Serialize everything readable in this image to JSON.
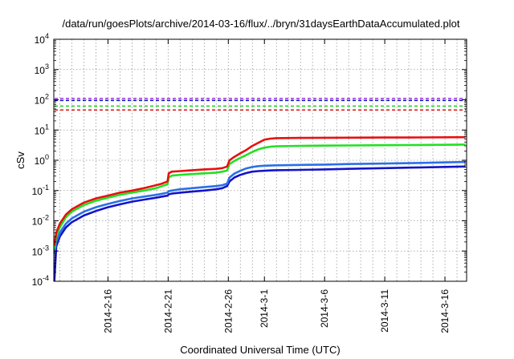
{
  "chart_data": {
    "type": "line",
    "title": "/data/run/goesPlots/archive/2014-03-16/flux/../bryn/31daysEarthDataAccumulated.plot",
    "xlabel": "Coordinated Universal Time (UTC)",
    "ylabel": "cSv",
    "y_scale": "log",
    "ylim": [
      0.0001,
      10000
    ],
    "y_ticks": [
      {
        "value": 0.0001,
        "base": "10",
        "exp": "-4"
      },
      {
        "value": 0.001,
        "base": "10",
        "exp": "-3"
      },
      {
        "value": 0.01,
        "base": "10",
        "exp": "-2"
      },
      {
        "value": 0.1,
        "base": "10",
        "exp": "-1"
      },
      {
        "value": 1,
        "base": "10",
        "exp": "0"
      },
      {
        "value": 10,
        "base": "10",
        "exp": "1"
      },
      {
        "value": 100,
        "base": "10",
        "exp": "2"
      },
      {
        "value": 1000,
        "base": "10",
        "exp": "3"
      },
      {
        "value": 10000,
        "base": "10",
        "exp": "4"
      }
    ],
    "xlim": [
      -2.5,
      31.8
    ],
    "x_unit": "days since 2014-02-14 00:00 UTC",
    "x_ticks": [
      {
        "value": 2,
        "label": "2014-2-16"
      },
      {
        "value": 7,
        "label": "2014-2-21"
      },
      {
        "value": 12,
        "label": "2014-2-26"
      },
      {
        "value": 15,
        "label": "2014-3-1"
      },
      {
        "value": 20,
        "label": "2014-3-6"
      },
      {
        "value": 25,
        "label": "2014-3-11"
      },
      {
        "value": 30,
        "label": "2014-3-16"
      }
    ],
    "grid": true,
    "thresholds": [
      {
        "value": 110,
        "color": "#9b30d9",
        "style": "dashed"
      },
      {
        "value": 95,
        "color": "#1010c8",
        "style": "dashed"
      },
      {
        "value": 62,
        "color": "#22cc22",
        "style": "dashed"
      },
      {
        "value": 46,
        "color": "#e01010",
        "style": "dashed"
      }
    ],
    "series": [
      {
        "color": "#e81010",
        "x": [
          -2.45,
          -2.3,
          -2.0,
          -1.5,
          -1.0,
          0,
          1,
          2,
          3,
          4,
          5,
          6,
          6.5,
          6.95,
          7.05,
          7.3,
          8,
          9,
          10,
          11,
          11.5,
          11.9,
          12.1,
          12.5,
          13,
          13.5,
          14,
          14.5,
          15,
          15.5,
          16,
          18,
          20,
          22,
          25,
          28,
          31.7
        ],
        "y": [
          0.0015,
          0.004,
          0.008,
          0.016,
          0.024,
          0.04,
          0.055,
          0.068,
          0.085,
          0.1,
          0.12,
          0.15,
          0.17,
          0.2,
          0.37,
          0.42,
          0.44,
          0.47,
          0.5,
          0.52,
          0.55,
          0.62,
          1.0,
          1.3,
          1.7,
          2.2,
          3.0,
          3.8,
          4.8,
          5.2,
          5.4,
          5.5,
          5.55,
          5.6,
          5.65,
          5.7,
          5.8
        ]
      },
      {
        "color": "#22e022",
        "x": [
          -2.45,
          -2.3,
          -2.0,
          -1.5,
          -1.0,
          0,
          1,
          2,
          3,
          4,
          5,
          6,
          6.5,
          6.95,
          7.05,
          7.3,
          8,
          9,
          10,
          11,
          11.5,
          11.9,
          12.1,
          12.5,
          13,
          13.5,
          14,
          14.5,
          15,
          15.5,
          16,
          18,
          20,
          22,
          25,
          28,
          31.7
        ],
        "y": [
          0.0012,
          0.003,
          0.006,
          0.013,
          0.02,
          0.033,
          0.046,
          0.058,
          0.072,
          0.085,
          0.1,
          0.12,
          0.14,
          0.16,
          0.27,
          0.31,
          0.33,
          0.35,
          0.37,
          0.39,
          0.42,
          0.46,
          0.75,
          0.95,
          1.2,
          1.5,
          1.9,
          2.3,
          2.6,
          2.8,
          2.9,
          3.0,
          3.05,
          3.1,
          3.15,
          3.2,
          3.3
        ]
      },
      {
        "color": "#2a70e8",
        "x": [
          -2.45,
          -2.3,
          -2.0,
          -1.5,
          -1.0,
          0,
          1,
          2,
          3,
          4,
          5,
          6,
          6.5,
          6.95,
          7.05,
          7.3,
          8,
          9,
          10,
          11,
          11.5,
          11.9,
          12.1,
          12.5,
          13,
          13.5,
          14,
          14.5,
          15,
          15.5,
          16,
          18,
          20,
          22,
          25,
          28,
          31.7
        ],
        "y": [
          0.0008,
          0.002,
          0.004,
          0.008,
          0.012,
          0.02,
          0.028,
          0.036,
          0.045,
          0.055,
          0.063,
          0.072,
          0.078,
          0.085,
          0.095,
          0.1,
          0.11,
          0.12,
          0.13,
          0.14,
          0.15,
          0.17,
          0.27,
          0.36,
          0.45,
          0.54,
          0.6,
          0.64,
          0.66,
          0.67,
          0.68,
          0.7,
          0.72,
          0.75,
          0.78,
          0.82,
          0.88
        ]
      },
      {
        "color": "#1414c8",
        "x": [
          -2.45,
          -2.3,
          -2.0,
          -1.5,
          -1.0,
          0,
          1,
          2,
          3,
          4,
          5,
          6,
          6.5,
          6.95,
          7.05,
          7.3,
          8,
          9,
          10,
          11,
          11.5,
          11.9,
          12.1,
          12.5,
          13,
          13.5,
          14,
          14.5,
          15,
          15.5,
          16,
          18,
          20,
          22,
          25,
          28,
          31.7
        ],
        "y": [
          0.0001,
          0.0014,
          0.003,
          0.006,
          0.009,
          0.015,
          0.021,
          0.028,
          0.035,
          0.043,
          0.05,
          0.058,
          0.063,
          0.068,
          0.075,
          0.079,
          0.085,
          0.092,
          0.1,
          0.11,
          0.12,
          0.14,
          0.2,
          0.27,
          0.33,
          0.38,
          0.42,
          0.44,
          0.45,
          0.46,
          0.47,
          0.48,
          0.5,
          0.52,
          0.55,
          0.58,
          0.62
        ]
      }
    ]
  }
}
